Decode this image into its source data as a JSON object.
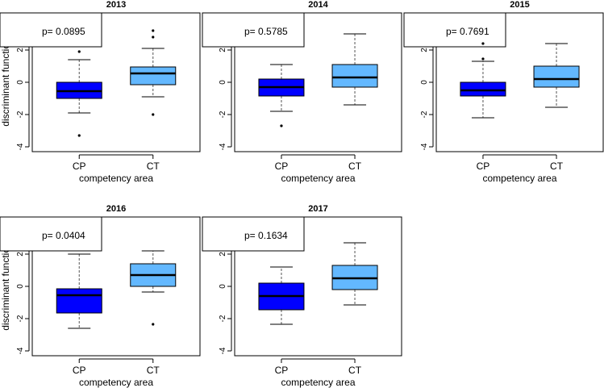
{
  "figure": {
    "xlabel": "competency area",
    "ylabel": "discriminant function",
    "categories": [
      "CP",
      "CT"
    ],
    "colors": {
      "CP": "#0000ff",
      "CT": "#63b8ff"
    }
  },
  "chart_data": [
    {
      "type": "boxplot",
      "title": "2013",
      "pvalue_label": "p= 0.0895",
      "xlabel": "competency area",
      "ylabel": "discriminant function",
      "ylim": [
        -4.3,
        4.3
      ],
      "yticks": [
        -4,
        -2,
        0,
        2,
        4
      ],
      "series": [
        {
          "name": "CP",
          "whisker_low": -1.9,
          "q1": -1.0,
          "median": -0.55,
          "q3": 0.0,
          "whisker_high": 1.4,
          "outliers": [
            1.9,
            -3.3
          ]
        },
        {
          "name": "CT",
          "whisker_low": -0.9,
          "q1": -0.15,
          "median": 0.55,
          "q3": 0.95,
          "whisker_high": 2.1,
          "outliers": [
            3.2,
            2.8,
            -2.0
          ]
        }
      ]
    },
    {
      "type": "boxplot",
      "title": "2014",
      "pvalue_label": "p= 0.5785",
      "xlabel": "competency area",
      "ylabel": "",
      "ylim": [
        -4.3,
        4.3
      ],
      "yticks": [
        -4,
        -2,
        0,
        2,
        4
      ],
      "series": [
        {
          "name": "CP",
          "whisker_low": -1.8,
          "q1": -0.85,
          "median": -0.3,
          "q3": 0.2,
          "whisker_high": 1.1,
          "outliers": [
            -2.7
          ]
        },
        {
          "name": "CT",
          "whisker_low": -1.4,
          "q1": -0.3,
          "median": 0.3,
          "q3": 1.1,
          "whisker_high": 3.0,
          "outliers": []
        }
      ]
    },
    {
      "type": "boxplot",
      "title": "2015",
      "pvalue_label": "p= 0.7691",
      "xlabel": "competency area",
      "ylabel": "",
      "ylim": [
        -4.3,
        4.3
      ],
      "yticks": [
        -4,
        -2,
        0,
        2,
        4
      ],
      "series": [
        {
          "name": "CP",
          "whisker_low": -2.2,
          "q1": -0.85,
          "median": -0.5,
          "q3": 0.0,
          "whisker_high": 1.3,
          "outliers": [
            2.4,
            1.45
          ]
        },
        {
          "name": "CT",
          "whisker_low": -1.55,
          "q1": -0.3,
          "median": 0.2,
          "q3": 1.0,
          "whisker_high": 2.4,
          "outliers": []
        }
      ]
    },
    {
      "type": "boxplot",
      "title": "2016",
      "pvalue_label": "p= 0.0404",
      "xlabel": "competency area",
      "ylabel": "discriminant function",
      "ylim": [
        -4.3,
        4.3
      ],
      "yticks": [
        -4,
        -2,
        0,
        2,
        4
      ],
      "series": [
        {
          "name": "CP",
          "whisker_low": -2.6,
          "q1": -1.65,
          "median": -0.55,
          "q3": -0.15,
          "whisker_high": 2.0,
          "outliers": []
        },
        {
          "name": "CT",
          "whisker_low": -0.35,
          "q1": 0.0,
          "median": 0.7,
          "q3": 1.4,
          "whisker_high": 2.2,
          "outliers": [
            -2.35
          ]
        }
      ]
    },
    {
      "type": "boxplot",
      "title": "2017",
      "pvalue_label": "p= 0.1634",
      "xlabel": "competency area",
      "ylabel": "",
      "ylim": [
        -4.3,
        4.3
      ],
      "yticks": [
        -4,
        -2,
        0,
        2,
        4
      ],
      "series": [
        {
          "name": "CP",
          "whisker_low": -2.35,
          "q1": -1.45,
          "median": -0.6,
          "q3": 0.2,
          "whisker_high": 1.2,
          "outliers": []
        },
        {
          "name": "CT",
          "whisker_low": -1.15,
          "q1": -0.2,
          "median": 0.5,
          "q3": 1.3,
          "whisker_high": 2.7,
          "outliers": []
        }
      ]
    }
  ]
}
